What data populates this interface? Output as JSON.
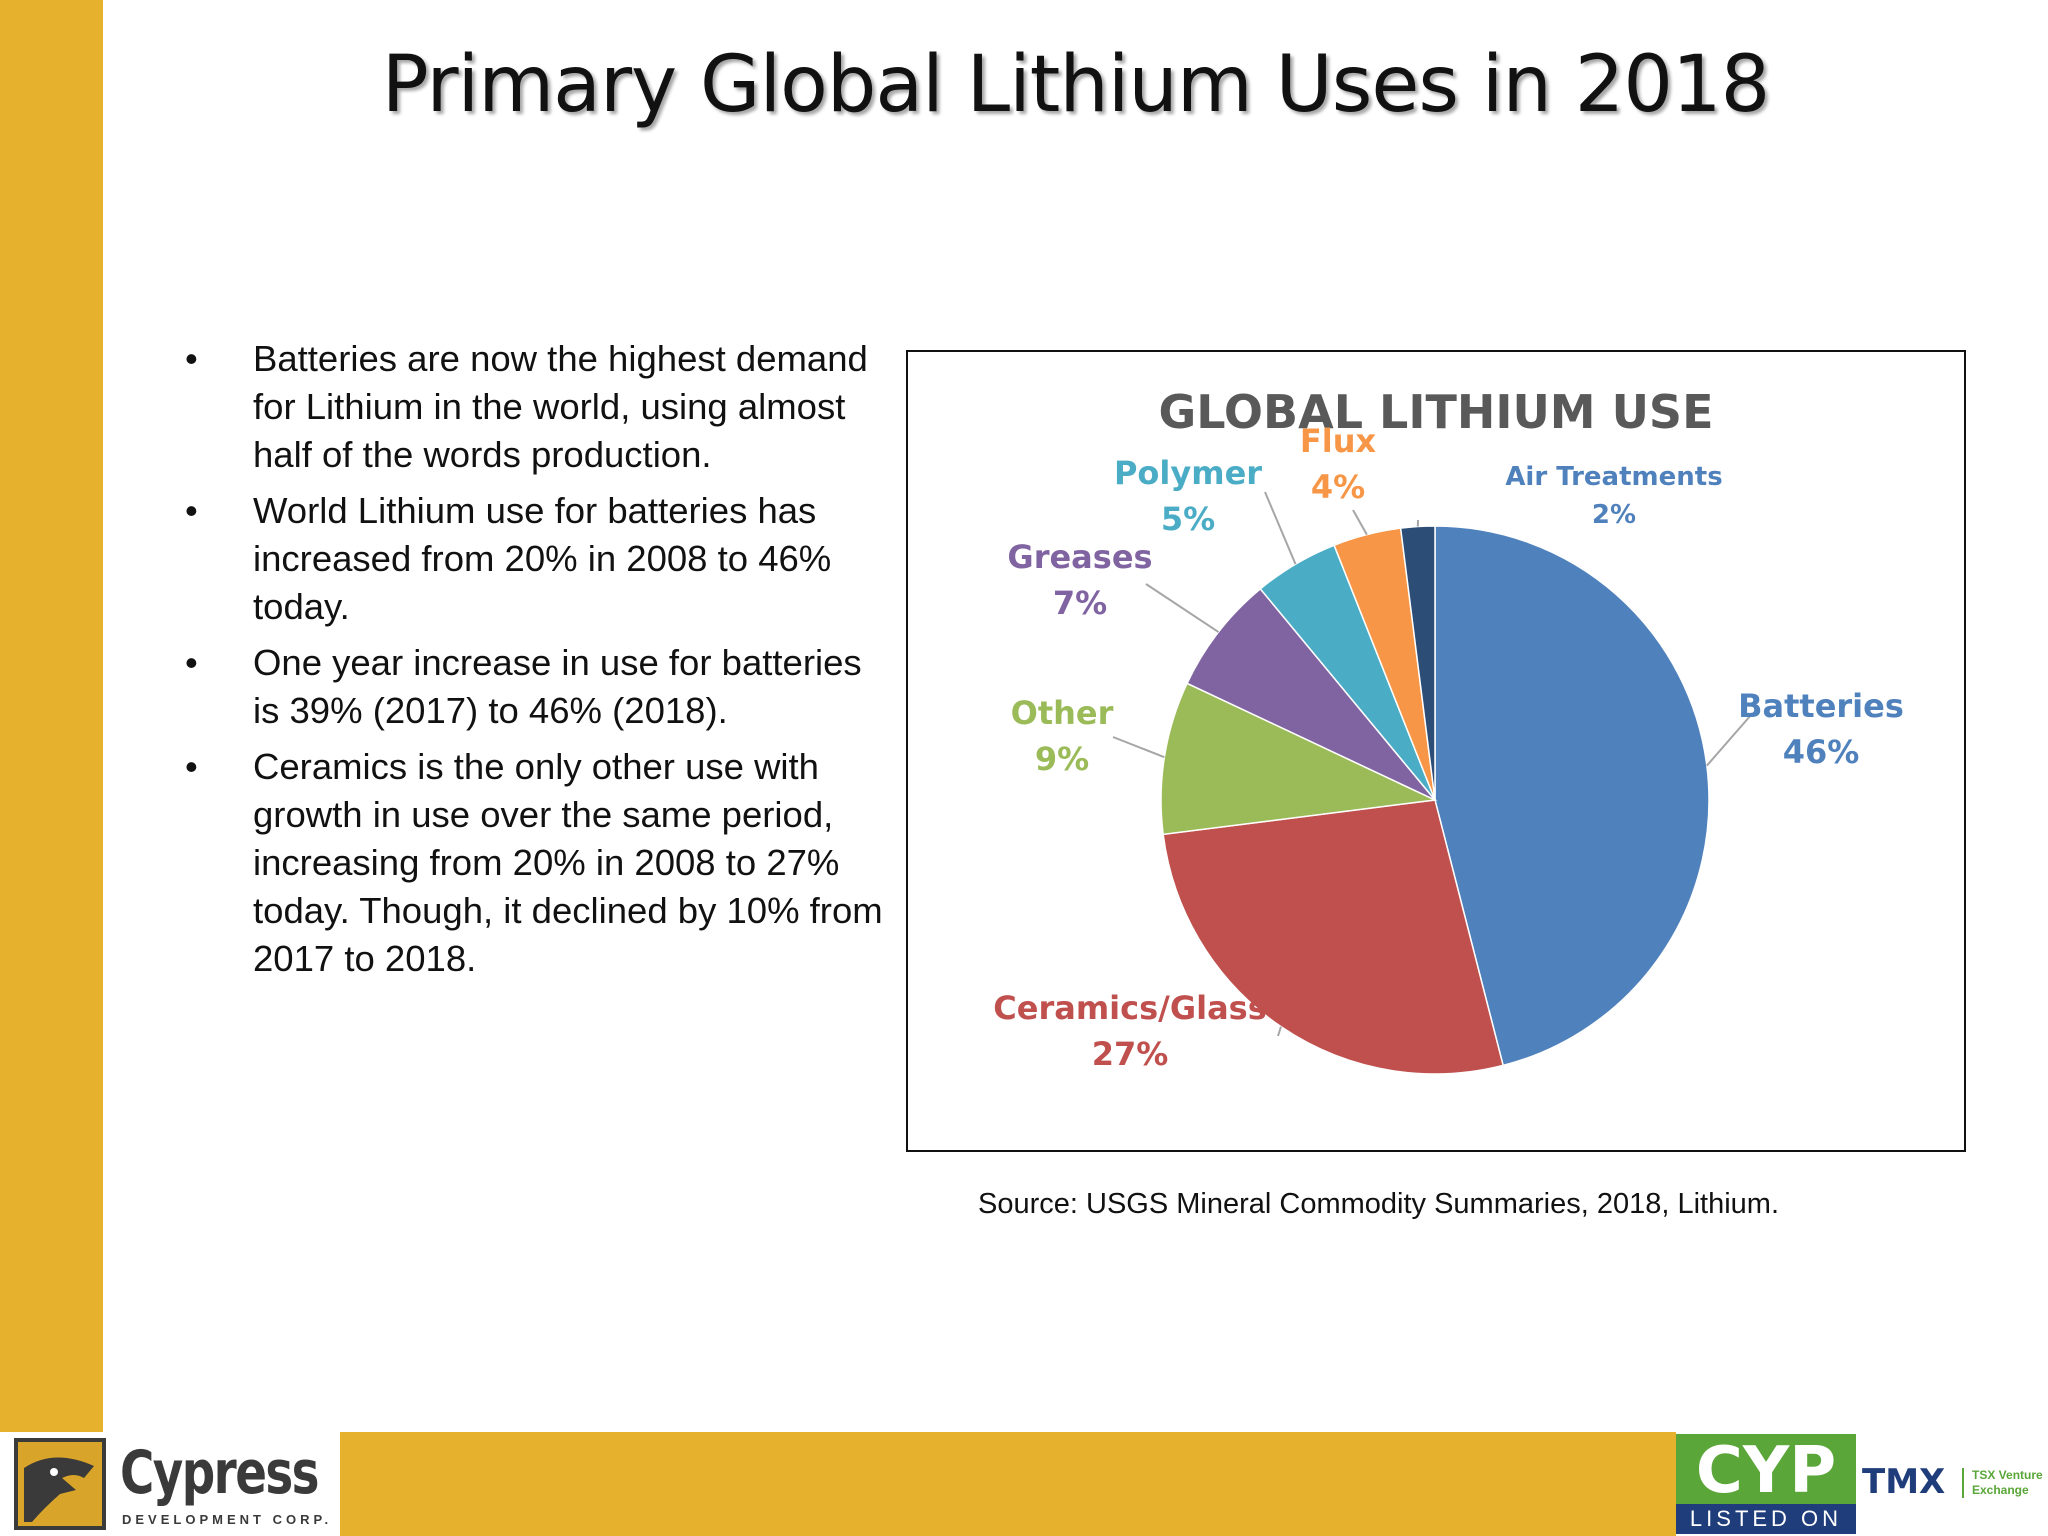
{
  "title": "Primary Global Lithium Uses in 2018",
  "bullets": [
    {
      "marker": "•",
      "text": "Batteries are now the highest demand for Lithium in the world, using almost half of the words production."
    },
    {
      "marker": "•",
      "text": "World Lithium use for batteries has increased from 20% in 2008 to 46% today."
    },
    {
      "marker": "•",
      "text": "One year increase in use for batteries is 39% (2017) to 46% (2018)."
    },
    {
      "marker": "•",
      "text": "Ceramics is the only other use with growth in use over the same period, increasing from 20% in 2008 to 27% today. Though, it declined by 10% from 2017 to 2018."
    }
  ],
  "source": "Source: USGS Mineral Commodity Summaries, 2018, Lithium.",
  "chart_data": {
    "type": "pie",
    "title": "GLOBAL LITHIUM USE",
    "unit": "%",
    "slices": [
      {
        "label": "Batteries",
        "value": 46,
        "value_label": "46%",
        "color": "#4f81bd"
      },
      {
        "label": "Ceramics/Glass",
        "value": 27,
        "value_label": "27%",
        "color": "#c0504d"
      },
      {
        "label": "Other",
        "value": 9,
        "value_label": "9%",
        "color": "#9bbb59"
      },
      {
        "label": "Greases",
        "value": 7,
        "value_label": "7%",
        "color": "#8064a2"
      },
      {
        "label": "Polymer",
        "value": 5,
        "value_label": "5%",
        "color": "#4bacc6"
      },
      {
        "label": "Flux",
        "value": 4,
        "value_label": "4%",
        "color": "#f79646"
      },
      {
        "label": "Air Treatments",
        "value": 2,
        "value_label": "2%",
        "color": "#2c4d75"
      }
    ]
  },
  "logos": {
    "left_brand": "Cypress",
    "left_sub": "DEVELOPMENT CORP.",
    "right_ticker": "CYP",
    "right_listed": "LISTED ON",
    "right_exchange": "TMX",
    "right_exchange_sub": "TSX Venture Exchange"
  },
  "colors": {
    "accent": "#e6b22e",
    "listing_green": "#5aa638",
    "listing_blue": "#1f3d7a"
  }
}
